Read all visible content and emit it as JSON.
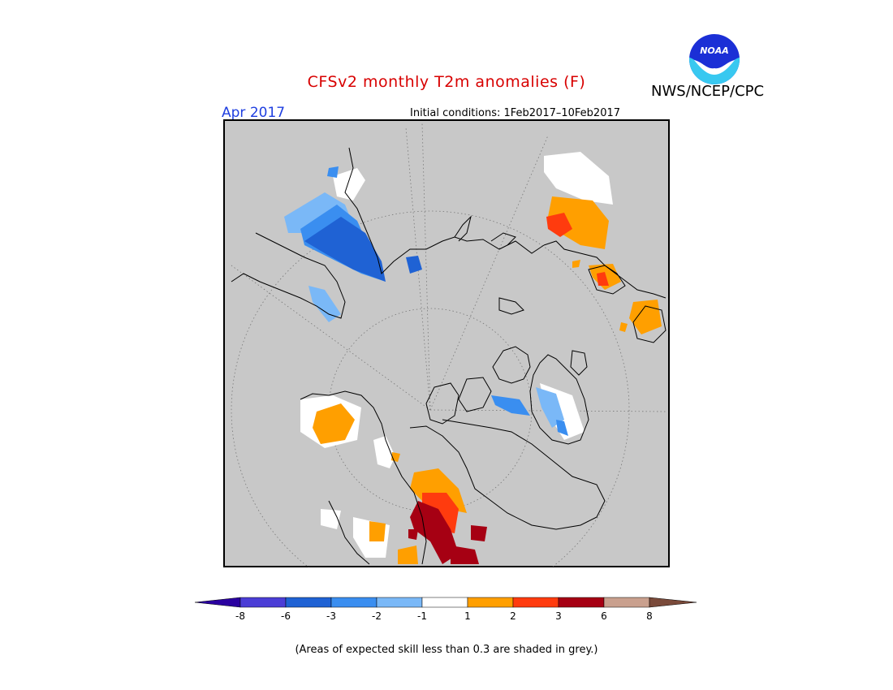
{
  "header": {
    "title": "CFSv2 monthly T2m anomalies (F)",
    "agency": "NWS/NCEP/CPC",
    "logo_text": "NOAA",
    "month": "Apr 2017",
    "initial_conditions": "Initial conditions: 1Feb2017–10Feb2017"
  },
  "legend": {
    "colors": [
      "#2a00a0",
      "#4b3dd6",
      "#1f62d4",
      "#3a8ef0",
      "#7ab8f7",
      "#ffffff",
      "#ff9f00",
      "#ff3b0e",
      "#a60013",
      "#c9a08e",
      "#7a4a3a"
    ],
    "ticks": [
      "-8",
      "-6",
      "-3",
      "-2",
      "-1",
      "1",
      "2",
      "3",
      "6",
      "8"
    ]
  },
  "map": {
    "background": "#c8c8c8",
    "projection": "north-polar-stereographic"
  },
  "footnote": "(Areas of expected skill less than 0.3 are shaded in grey.)"
}
